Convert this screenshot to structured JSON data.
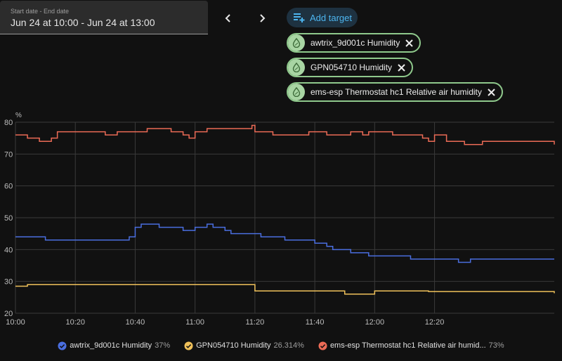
{
  "date_range": {
    "label": "Start date - End date",
    "value": "Jun 24 at 10:00 - Jun 24 at 13:00"
  },
  "add_target": {
    "label": "Add target",
    "icon": "playlist-plus-icon"
  },
  "targets": [
    {
      "label": "awtrix_9d001c Humidity",
      "icon": "water-percent-icon"
    },
    {
      "label": "GPN054710 Humidity",
      "icon": "water-percent-icon"
    },
    {
      "label": "ems-esp Thermostat hc1 Relative air humidity",
      "icon": "water-percent-icon"
    }
  ],
  "legend": [
    {
      "name": "awtrix_9d001c Humidity",
      "value": "37%",
      "color": "#4a6ee0"
    },
    {
      "name": "GPN054710 Humidity",
      "value": "26.314%",
      "color": "#f0c15a"
    },
    {
      "name": "ems-esp Thermostat hc1 Relative air humid...",
      "value": "73%",
      "color": "#ec6b56"
    }
  ],
  "chart_data": {
    "type": "line",
    "ylabel": "%",
    "ylim": [
      20,
      80
    ],
    "yticks": [
      "20",
      "30",
      "40",
      "50",
      "60",
      "70",
      "80"
    ],
    "xlim": [
      "10:00",
      "13:00"
    ],
    "xticks": [
      "10:00",
      "10:20",
      "10:40",
      "11:00",
      "11:20",
      "11:40",
      "12:00",
      "12:20"
    ],
    "grid": true,
    "series": [
      {
        "name": "awtrix_9d001c Humidity",
        "color": "#4a6ee0",
        "points": [
          [
            "10:00",
            44
          ],
          [
            "10:10",
            43
          ],
          [
            "10:38",
            44
          ],
          [
            "10:40",
            47
          ],
          [
            "10:42",
            48
          ],
          [
            "10:48",
            47
          ],
          [
            "10:52",
            47
          ],
          [
            "10:56",
            46
          ],
          [
            "11:00",
            47
          ],
          [
            "11:04",
            48
          ],
          [
            "11:06",
            47
          ],
          [
            "11:10",
            46
          ],
          [
            "11:12",
            45
          ],
          [
            "11:16",
            45
          ],
          [
            "11:22",
            44
          ],
          [
            "11:26",
            44
          ],
          [
            "11:30",
            43
          ],
          [
            "11:40",
            42
          ],
          [
            "11:44",
            41
          ],
          [
            "11:46",
            40
          ],
          [
            "11:52",
            39
          ],
          [
            "11:58",
            38
          ],
          [
            "12:10",
            38
          ],
          [
            "12:12",
            37
          ],
          [
            "12:22",
            37
          ],
          [
            "12:28",
            36
          ],
          [
            "12:32",
            37
          ],
          [
            "13:00",
            37
          ]
        ]
      },
      {
        "name": "GPN054710 Humidity",
        "color": "#f0c15a",
        "points": [
          [
            "10:00",
            28.5
          ],
          [
            "10:04",
            29
          ],
          [
            "11:20",
            29
          ],
          [
            "11:20",
            27
          ],
          [
            "11:48",
            27
          ],
          [
            "11:50",
            26
          ],
          [
            "11:58",
            26
          ],
          [
            "12:00",
            27
          ],
          [
            "12:16",
            27
          ],
          [
            "12:18",
            26.8
          ],
          [
            "13:00",
            26.3
          ]
        ]
      },
      {
        "name": "ems-esp Thermostat hc1 Relative air humidity",
        "color": "#ec6b56",
        "points": [
          [
            "10:00",
            76
          ],
          [
            "10:04",
            75
          ],
          [
            "10:08",
            74
          ],
          [
            "10:12",
            75
          ],
          [
            "10:14",
            77
          ],
          [
            "10:30",
            76
          ],
          [
            "10:34",
            77
          ],
          [
            "10:44",
            78
          ],
          [
            "10:52",
            77
          ],
          [
            "10:56",
            76
          ],
          [
            "10:58",
            75
          ],
          [
            "11:00",
            77
          ],
          [
            "11:04",
            78
          ],
          [
            "11:18",
            78
          ],
          [
            "11:19",
            79
          ],
          [
            "11:20",
            77
          ],
          [
            "11:26",
            76
          ],
          [
            "11:34",
            76
          ],
          [
            "11:38",
            77
          ],
          [
            "11:44",
            76
          ],
          [
            "11:52",
            77
          ],
          [
            "11:56",
            76
          ],
          [
            "11:58",
            77
          ],
          [
            "12:06",
            76
          ],
          [
            "12:12",
            76
          ],
          [
            "12:16",
            75
          ],
          [
            "12:18",
            74
          ],
          [
            "12:20",
            76
          ],
          [
            "12:24",
            74
          ],
          [
            "12:30",
            73
          ],
          [
            "12:36",
            74
          ],
          [
            "13:00",
            73
          ]
        ]
      }
    ]
  }
}
